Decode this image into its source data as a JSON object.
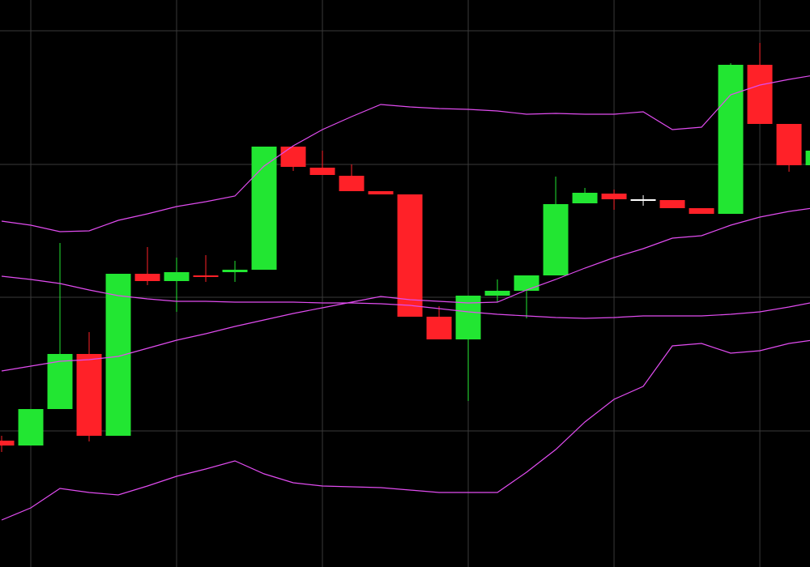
{
  "chart_data": {
    "type": "candlestick",
    "x": [
      0,
      1,
      2,
      3,
      4,
      5,
      6,
      7,
      8,
      9,
      10,
      11,
      12,
      13,
      14,
      15,
      16,
      17,
      18,
      19,
      20,
      21,
      22,
      23,
      24,
      25,
      26,
      27,
      28
    ],
    "open": [
      156,
      150,
      195,
      263,
      162,
      362,
      353,
      360,
      364,
      367,
      519,
      493,
      483,
      464,
      460,
      309,
      281,
      335,
      341,
      360,
      449,
      461,
      454,
      453,
      443,
      436,
      620,
      547,
      496
    ],
    "high": [
      162,
      195,
      400,
      290,
      362,
      395,
      382,
      385,
      378,
      519,
      519,
      514,
      497,
      464,
      460,
      322,
      335,
      355,
      360,
      482,
      468,
      466,
      459,
      453,
      443,
      622,
      647,
      547,
      514
    ],
    "low": [
      142,
      150,
      195,
      155,
      162,
      348,
      315,
      352,
      352,
      367,
      489,
      484,
      464,
      460,
      309,
      281,
      205,
      327,
      307,
      360,
      449,
      441,
      446,
      443,
      436,
      436,
      547,
      488,
      496
    ],
    "close": [
      150,
      195,
      263,
      162,
      362,
      353,
      364,
      358,
      367,
      519,
      494,
      484,
      464,
      460,
      309,
      281,
      335,
      341,
      360,
      448,
      462,
      454,
      454,
      443,
      436,
      620,
      547,
      496,
      514
    ],
    "up_color": "#22e632",
    "down_color": "#ff2128",
    "doji_color": "#ffffff",
    "lines": [
      {
        "color": "#e14cf0",
        "values": [
          427,
          422,
          414,
          415,
          428,
          436,
          445,
          451,
          458,
          495,
          520,
          540,
          556,
          571,
          568,
          566,
          565,
          563,
          559,
          560,
          559,
          559,
          562,
          540,
          543,
          583,
          595,
          602,
          608
        ]
      },
      {
        "color": "#e14cf0",
        "values": [
          242,
          248,
          254,
          256,
          260,
          270,
          280,
          288,
          297,
          305,
          313,
          320,
          327,
          334,
          330,
          328,
          326,
          327,
          342,
          355,
          369,
          382,
          393,
          406,
          409,
          422,
          432,
          439,
          444
        ]
      },
      {
        "color": "#e14cf0",
        "values": [
          359,
          355,
          350,
          342,
          335,
          331,
          328,
          328,
          327,
          327,
          327,
          326,
          326,
          325,
          323,
          319,
          315,
          312,
          310,
          308,
          307,
          308,
          310,
          310,
          310,
          312,
          315,
          321,
          328
        ]
      },
      {
        "color": "#e14cf0",
        "values": [
          58,
          73,
          97,
          92,
          89,
          100,
          112,
          121,
          131,
          115,
          104,
          100,
          99,
          98,
          95,
          92,
          92,
          92,
          117,
          145,
          179,
          207,
          223,
          273,
          276,
          264,
          267,
          276,
          281
        ]
      }
    ],
    "xlim": [
      -0.056,
      27.72
    ],
    "ylim": [
      0,
      700
    ],
    "xticks": [
      1,
      6,
      11,
      16,
      21,
      26
    ],
    "yticks": [
      662,
      497,
      333,
      168
    ],
    "grid": true,
    "grid_color": "#3a3a3a"
  }
}
